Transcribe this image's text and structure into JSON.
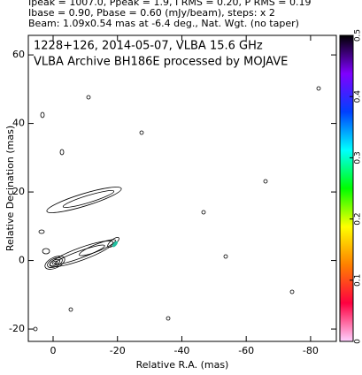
{
  "chart_data": {
    "type": "contour",
    "header": [
      "Ipeak = 1007.0, Ppeak = 1.9, I RMS = 0.20, P RMS = 0.19",
      "Ibase = 0.90, Pbase = 0.60 (mJy/beam), steps: x 2",
      "Beam: 1.09x0.54 mas at -6.4 deg., Nat. Wgt. (no taper)"
    ],
    "annotations": [
      "1228+126, 2014-05-07, VLBA 15.6 GHz",
      "VLBA Archive BH186E processed by MOJAVE"
    ],
    "xlabel": "Relative R.A. (mas)",
    "ylabel": "Relative Decination (mas)",
    "xlim": [
      7.7,
      -88
    ],
    "ylim": [
      -23.6,
      65.7
    ],
    "xticks": [
      0,
      -20,
      -40,
      -60,
      -80
    ],
    "yticks": [
      -20,
      0,
      20,
      40,
      60
    ],
    "colorbar": {
      "lim": [
        0,
        0.5
      ],
      "ticks": [
        0,
        0.1,
        0.2,
        0.3,
        0.4,
        0.5
      ],
      "colors": [
        "#ffd0ff",
        "#ff0040",
        "#ff8000",
        "#ffff00",
        "#00ff00",
        "#00ffff",
        "#0040ff",
        "#8000ff",
        "#000000"
      ]
    }
  }
}
